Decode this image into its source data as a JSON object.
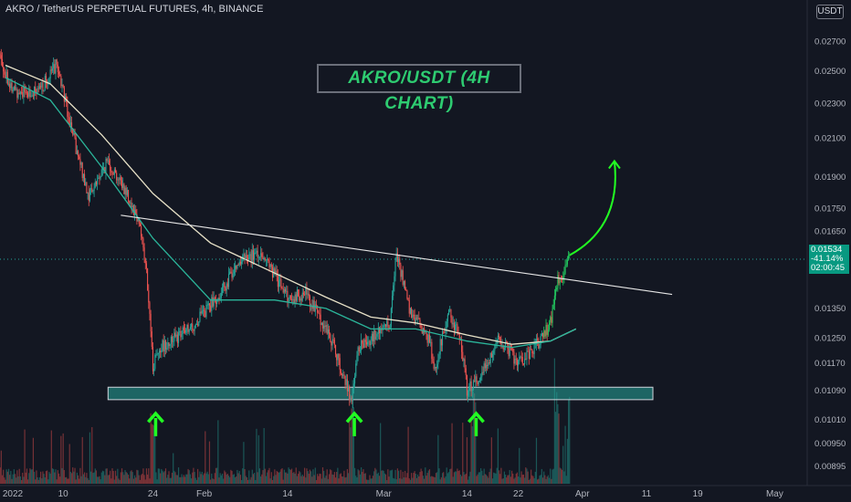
{
  "header": {
    "symbol_line": "AKRO / TetherUS PERPETUAL FUTURES, 4h, BINANCE",
    "currency_button": "USDT"
  },
  "annotation_title": "AKRO/USDT (4H CHART)",
  "price_tag": {
    "price": "0.01534",
    "change": "-41.14%",
    "countdown": "02:00:45"
  },
  "colors": {
    "background": "#131722",
    "up": "#26a69a",
    "down": "#ef5350",
    "bright_up": "#22c55e",
    "sma_light": "#e8e2c8",
    "sma_teal": "#2bb59a",
    "support_zone": "#26a69a",
    "arrow": "#22ff22"
  },
  "chart_data": {
    "type": "candlestick",
    "title": "AKRO/USDT (4H CHART)",
    "x_ticks": [
      "2022",
      "10",
      "24",
      "Feb",
      "14",
      "Mar",
      "14",
      "22",
      "Apr",
      "11",
      "19",
      "May"
    ],
    "y_ticks": [
      "0.02700",
      "0.02500",
      "0.02300",
      "0.02100",
      "0.01900",
      "0.01750",
      "0.01650",
      "0.01535",
      "0.01350",
      "0.01250",
      "0.01170",
      "0.01090",
      "0.01010",
      "0.00950",
      "0.00895"
    ],
    "y_range": [
      0.0086,
      0.0287
    ],
    "log_scale": true,
    "grid": false,
    "price_path": [
      {
        "date": "2021-12-31",
        "price": 0.0262
      },
      {
        "date": "2022-01-02",
        "price": 0.0238
      },
      {
        "date": "2022-01-06",
        "price": 0.0236
      },
      {
        "date": "2022-01-08",
        "price": 0.0248
      },
      {
        "date": "2022-01-09",
        "price": 0.0255
      },
      {
        "date": "2022-01-10",
        "price": 0.0238
      },
      {
        "date": "2022-01-12",
        "price": 0.0204
      },
      {
        "date": "2022-01-14",
        "price": 0.0181
      },
      {
        "date": "2022-01-17",
        "price": 0.0198
      },
      {
        "date": "2022-01-20",
        "price": 0.0182
      },
      {
        "date": "2022-01-22",
        "price": 0.0168
      },
      {
        "date": "2022-01-23",
        "price": 0.0148
      },
      {
        "date": "2022-01-24",
        "price": 0.0116
      },
      {
        "date": "2022-01-25",
        "price": 0.0122
      },
      {
        "date": "2022-01-30",
        "price": 0.0128
      },
      {
        "date": "2022-02-04",
        "price": 0.0142
      },
      {
        "date": "2022-02-06",
        "price": 0.0152
      },
      {
        "date": "2022-02-10",
        "price": 0.0156
      },
      {
        "date": "2022-02-14",
        "price": 0.0139
      },
      {
        "date": "2022-02-17",
        "price": 0.014
      },
      {
        "date": "2022-02-21",
        "price": 0.0124
      },
      {
        "date": "2022-02-24",
        "price": 0.0106
      },
      {
        "date": "2022-02-25",
        "price": 0.0122
      },
      {
        "date": "2022-03-02",
        "price": 0.013
      },
      {
        "date": "2022-03-03",
        "price": 0.0157
      },
      {
        "date": "2022-03-05",
        "price": 0.0134
      },
      {
        "date": "2022-03-08",
        "price": 0.0125
      },
      {
        "date": "2022-03-09",
        "price": 0.0115
      },
      {
        "date": "2022-03-11",
        "price": 0.0134
      },
      {
        "date": "2022-03-13",
        "price": 0.0125
      },
      {
        "date": "2022-03-14",
        "price": 0.0109
      },
      {
        "date": "2022-03-16",
        "price": 0.0113
      },
      {
        "date": "2022-03-19",
        "price": 0.0125
      },
      {
        "date": "2022-03-22",
        "price": 0.0117
      },
      {
        "date": "2022-03-25",
        "price": 0.0123
      },
      {
        "date": "2022-03-27",
        "price": 0.013
      },
      {
        "date": "2022-03-28",
        "price": 0.0144
      },
      {
        "date": "2022-03-30",
        "price": 0.0153
      }
    ],
    "sma_light": [
      {
        "date": "2022-01-01",
        "price": 0.0254
      },
      {
        "date": "2022-01-08",
        "price": 0.0242
      },
      {
        "date": "2022-01-16",
        "price": 0.0212
      },
      {
        "date": "2022-01-24",
        "price": 0.0182
      },
      {
        "date": "2022-02-02",
        "price": 0.016
      },
      {
        "date": "2022-02-12",
        "price": 0.0148
      },
      {
        "date": "2022-02-20",
        "price": 0.0139
      },
      {
        "date": "2022-02-27",
        "price": 0.0132
      },
      {
        "date": "2022-03-06",
        "price": 0.013
      },
      {
        "date": "2022-03-14",
        "price": 0.0126
      },
      {
        "date": "2022-03-21",
        "price": 0.0123
      },
      {
        "date": "2022-03-27",
        "price": 0.0124
      },
      {
        "date": "2022-03-31",
        "price": 0.0128
      }
    ],
    "sma_teal": [
      {
        "date": "2022-01-01",
        "price": 0.0246
      },
      {
        "date": "2022-01-08",
        "price": 0.0232
      },
      {
        "date": "2022-01-16",
        "price": 0.0195
      },
      {
        "date": "2022-01-24",
        "price": 0.0162
      },
      {
        "date": "2022-02-02",
        "price": 0.0138
      },
      {
        "date": "2022-02-12",
        "price": 0.0138
      },
      {
        "date": "2022-02-20",
        "price": 0.0135
      },
      {
        "date": "2022-02-27",
        "price": 0.0128
      },
      {
        "date": "2022-03-06",
        "price": 0.0128
      },
      {
        "date": "2022-03-14",
        "price": 0.0124
      },
      {
        "date": "2022-03-21",
        "price": 0.0122
      },
      {
        "date": "2022-03-27",
        "price": 0.0124
      },
      {
        "date": "2022-03-31",
        "price": 0.0128
      }
    ],
    "trendline": {
      "start": {
        "date": "2022-01-19",
        "price": 0.0172
      },
      "end": {
        "date": "2022-04-15",
        "price": 0.014
      }
    },
    "support_zone": {
      "start": "2022-01-17",
      "end": "2022-04-12",
      "low": 0.01065,
      "high": 0.011
    },
    "support_arrows": [
      "2022-01-24",
      "2022-02-24",
      "2022-03-15"
    ],
    "projection_arrow": {
      "start": {
        "date": "2022-03-30",
        "price": 0.0155
      },
      "end": {
        "date": "2022-04-06",
        "price": 0.0198
      }
    },
    "current_price": 0.01534
  }
}
